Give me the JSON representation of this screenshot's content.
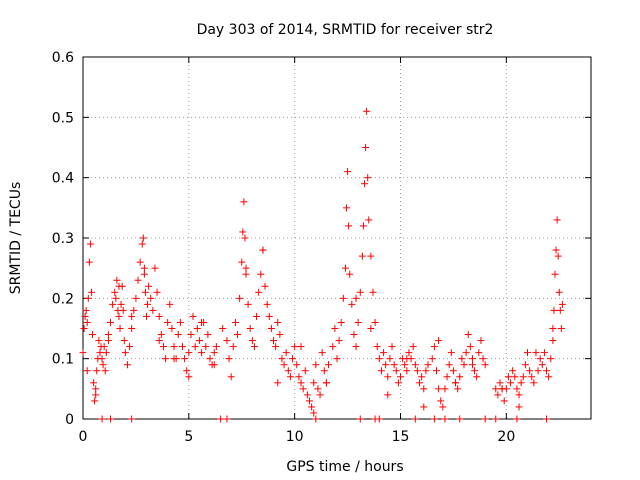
{
  "chart_data": {
    "type": "scatter",
    "title": "Day 303 of 2014, SRMTID for receiver str2",
    "xlabel": "GPS time / hours",
    "ylabel": "SRMTID / TECUs",
    "xlim": [
      0,
      24
    ],
    "ylim": [
      0,
      0.6
    ],
    "xticks": [
      0,
      5,
      10,
      15,
      20
    ],
    "xtick_labels": [
      "0",
      "5",
      "10",
      "15",
      "20"
    ],
    "yticks": [
      0,
      0.1,
      0.2,
      0.3,
      0.4,
      0.5,
      0.6
    ],
    "ytick_labels": [
      "0",
      "0.1",
      "0.2",
      "0.3",
      "0.4",
      "0.5",
      "0.6"
    ],
    "grid": true,
    "marker": "+",
    "color": "#ff0000",
    "series": [
      {
        "name": "SRMTID",
        "x": [
          0.0,
          0.05,
          0.1,
          0.15,
          0.2,
          0.25,
          0.3,
          0.35,
          0.4,
          0.45,
          0.5,
          0.55,
          0.6,
          0.65,
          0.7,
          0.75,
          0.8,
          0.85,
          0.9,
          0.95,
          1.0,
          1.05,
          1.1,
          1.2,
          1.3,
          1.4,
          1.5,
          1.55,
          1.6,
          1.65,
          1.7,
          1.75,
          1.8,
          1.85,
          1.9,
          1.95,
          2.0,
          2.1,
          2.2,
          2.3,
          2.4,
          2.5,
          2.6,
          2.7,
          2.8,
          2.85,
          2.9,
          2.95,
          3.0,
          3.05,
          3.1,
          3.2,
          3.3,
          3.4,
          3.5,
          3.6,
          3.7,
          3.8,
          3.9,
          4.0,
          4.1,
          4.2,
          4.3,
          4.4,
          4.5,
          4.6,
          4.7,
          4.8,
          4.9,
          5.0,
          5.1,
          5.2,
          5.3,
          5.4,
          5.5,
          5.6,
          5.7,
          5.8,
          5.9,
          6.0,
          6.1,
          6.2,
          6.3,
          6.6,
          6.8,
          6.9,
          7.0,
          7.1,
          7.2,
          7.3,
          7.4,
          7.5,
          7.55,
          7.6,
          7.65,
          7.7,
          7.8,
          7.9,
          8.0,
          8.1,
          8.2,
          8.3,
          8.4,
          8.5,
          8.6,
          8.7,
          8.8,
          8.9,
          9.0,
          9.1,
          9.2,
          9.3,
          9.4,
          9.5,
          9.6,
          9.7,
          9.8,
          9.9,
          10.0,
          10.1,
          10.2,
          10.3,
          10.4,
          10.5,
          10.6,
          10.7,
          10.8,
          10.9,
          11.0,
          11.1,
          11.2,
          11.3,
          11.4,
          11.5,
          11.6,
          11.8,
          11.9,
          12.0,
          12.1,
          12.2,
          12.3,
          12.4,
          12.45,
          12.5,
          12.55,
          12.6,
          12.7,
          12.8,
          12.9,
          13.0,
          13.1,
          13.2,
          13.25,
          13.3,
          13.35,
          13.4,
          13.45,
          13.5,
          13.6,
          13.7,
          13.8,
          13.9,
          14.0,
          14.1,
          14.2,
          14.3,
          14.4,
          14.5,
          14.6,
          14.7,
          14.8,
          14.9,
          15.0,
          15.1,
          15.2,
          15.3,
          15.4,
          15.5,
          15.6,
          15.7,
          15.8,
          15.9,
          16.0,
          16.1,
          16.2,
          16.3,
          16.5,
          16.6,
          16.7,
          16.8,
          16.9,
          17.0,
          17.1,
          17.2,
          17.3,
          17.4,
          17.5,
          17.6,
          17.7,
          17.8,
          17.9,
          18.0,
          18.1,
          18.2,
          18.3,
          18.4,
          18.5,
          18.6,
          18.7,
          18.8,
          18.9,
          19.0,
          19.5,
          19.6,
          19.7,
          19.8,
          19.9,
          20.0,
          20.1,
          20.2,
          20.3,
          20.4,
          20.5,
          20.6,
          20.7,
          20.8,
          20.9,
          21.0,
          21.1,
          21.2,
          21.3,
          21.5,
          21.6,
          21.7,
          21.8,
          21.9,
          22.0,
          22.1,
          22.2,
          22.25,
          22.3,
          22.35,
          22.4,
          22.45,
          22.5,
          22.55,
          22.6,
          22.65,
          0.2,
          0.6,
          1.2,
          1.7,
          2.3,
          2.9,
          3.6,
          4.3,
          5.0,
          5.6,
          6.2,
          7.7,
          8.5,
          9.2,
          10.3,
          10.9,
          11.5,
          12.9,
          13.6,
          14.4,
          15.3,
          16.1,
          16.8,
          17.6,
          18.4,
          19.8,
          20.6,
          21.4,
          22.2,
          0.9,
          1.3,
          2.3,
          6.5,
          6.8,
          11.0,
          13.1,
          13.8,
          14.0,
          15.7,
          16.6,
          17.1,
          17.8,
          19.0,
          19.5,
          20.5,
          21.9
        ],
        "y": [
          0.11,
          0.15,
          0.17,
          0.18,
          0.16,
          0.2,
          0.26,
          0.29,
          0.21,
          0.14,
          0.06,
          0.03,
          0.05,
          0.08,
          0.1,
          0.13,
          0.11,
          0.12,
          0.1,
          0.09,
          0.12,
          0.08,
          0.11,
          0.13,
          0.16,
          0.19,
          0.21,
          0.2,
          0.23,
          0.18,
          0.17,
          0.15,
          0.19,
          0.22,
          0.18,
          0.13,
          0.11,
          0.09,
          0.12,
          0.15,
          0.18,
          0.2,
          0.23,
          0.26,
          0.29,
          0.3,
          0.24,
          0.21,
          0.17,
          0.19,
          0.22,
          0.2,
          0.18,
          0.25,
          0.21,
          0.17,
          0.14,
          0.12,
          0.1,
          0.16,
          0.19,
          0.15,
          0.12,
          0.1,
          0.14,
          0.16,
          0.12,
          0.1,
          0.08,
          0.11,
          0.14,
          0.17,
          0.12,
          0.15,
          0.13,
          0.11,
          0.16,
          0.12,
          0.14,
          0.1,
          0.09,
          0.11,
          0.12,
          0.15,
          0.13,
          0.1,
          0.07,
          0.12,
          0.16,
          0.14,
          0.2,
          0.26,
          0.31,
          0.36,
          0.3,
          0.25,
          0.19,
          0.15,
          0.13,
          0.12,
          0.17,
          0.21,
          0.24,
          0.28,
          0.22,
          0.19,
          0.17,
          0.15,
          0.13,
          0.12,
          0.16,
          0.14,
          0.1,
          0.09,
          0.11,
          0.08,
          0.07,
          0.1,
          0.12,
          0.09,
          0.07,
          0.06,
          0.05,
          0.08,
          0.04,
          0.03,
          0.02,
          0.06,
          0.09,
          0.05,
          0.04,
          0.11,
          0.08,
          0.06,
          0.09,
          0.12,
          0.15,
          0.1,
          0.13,
          0.16,
          0.2,
          0.25,
          0.35,
          0.41,
          0.32,
          0.24,
          0.19,
          0.14,
          0.12,
          0.16,
          0.21,
          0.27,
          0.32,
          0.39,
          0.45,
          0.51,
          0.4,
          0.33,
          0.27,
          0.21,
          0.16,
          0.12,
          0.1,
          0.08,
          0.11,
          0.09,
          0.07,
          0.1,
          0.12,
          0.09,
          0.08,
          0.06,
          0.07,
          0.1,
          0.09,
          0.08,
          0.11,
          0.1,
          0.12,
          0.09,
          0.08,
          0.06,
          0.07,
          0.05,
          0.08,
          0.09,
          0.1,
          0.12,
          0.08,
          0.05,
          0.03,
          0.02,
          0.05,
          0.07,
          0.09,
          0.11,
          0.08,
          0.06,
          0.05,
          0.07,
          0.1,
          0.09,
          0.11,
          0.14,
          0.12,
          0.1,
          0.08,
          0.07,
          0.11,
          0.13,
          0.1,
          0.09,
          0.05,
          0.04,
          0.06,
          0.05,
          0.03,
          0.05,
          0.07,
          0.06,
          0.08,
          0.07,
          0.05,
          0.04,
          0.06,
          0.07,
          0.09,
          0.11,
          0.08,
          0.07,
          0.06,
          0.08,
          0.1,
          0.09,
          0.11,
          0.08,
          0.07,
          0.1,
          0.13,
          0.18,
          0.24,
          0.28,
          0.33,
          0.27,
          0.21,
          0.18,
          0.15,
          0.19,
          0.08,
          0.04,
          0.14,
          0.22,
          0.17,
          0.25,
          0.13,
          0.1,
          0.07,
          0.16,
          0.09,
          0.24,
          0.28,
          0.06,
          0.12,
          0.01,
          0.06,
          0.2,
          0.15,
          0.04,
          0.1,
          0.02,
          0.13,
          0.06,
          0.09,
          0.05,
          0.02,
          0.11,
          0.15,
          0.0,
          0.0,
          0.0,
          0.0,
          0.0,
          0.0,
          0.0,
          0.0,
          0.0,
          0.0,
          0.0,
          0.0,
          0.0,
          0.0,
          0.0,
          0.0,
          0.0
        ]
      }
    ]
  }
}
